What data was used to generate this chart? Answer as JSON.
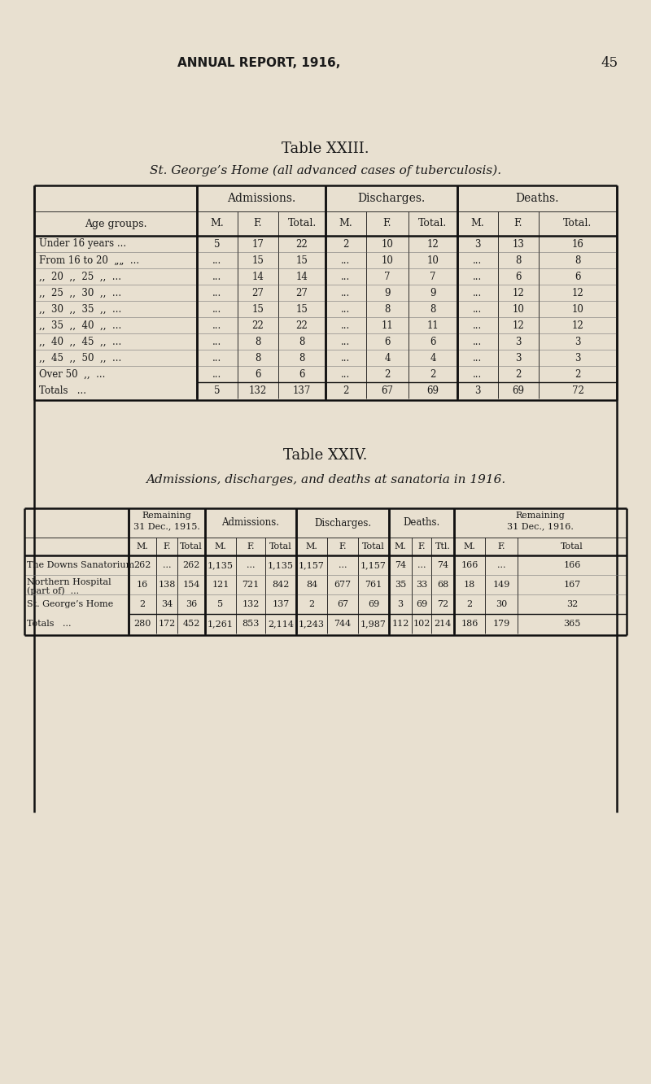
{
  "bg_color": "#e8e0d0",
  "text_color": "#1a1a1a",
  "page_header": "ANNUAL REPORT, 1916,",
  "page_number": "45",
  "table1_title": "Table XXIII.",
  "table1_subtitle": "St. George’s Home (all advanced cases of tuberculosis).",
  "table1_rows": [
    {
      "label": "Under 16 years ...",
      "adm_m": "5",
      "adm_f": "17",
      "adm_t": "22",
      "dis_m": "2",
      "dis_f": "10",
      "dis_t": "12",
      "dea_m": "3",
      "dea_f": "13",
      "dea_t": "16"
    },
    {
      "label": "From 16 to 20  „„  ...",
      "adm_m": "...",
      "adm_f": "15",
      "adm_t": "15",
      "dis_m": "...",
      "dis_f": "10",
      "dis_t": "10",
      "dea_m": "...",
      "dea_f": "8",
      "dea_t": "8"
    },
    {
      "„label": ",,  20  ,,  25  ,,  ...",
      "label": ",,  20  ,,  25  ,,  ...",
      "adm_m": "...",
      "adm_f": "14",
      "adm_t": "14",
      "dis_m": "...",
      "dis_f": "7",
      "dis_t": "7",
      "dea_m": "...",
      "dea_f": "6",
      "dea_t": "6"
    },
    {
      "label": ",,  25  ,,  30  ,,  ...",
      "adm_m": "...",
      "adm_f": "27",
      "adm_t": "27",
      "dis_m": "...",
      "dis_f": "9",
      "dis_t": "9",
      "dea_m": "...",
      "dea_f": "12",
      "dea_t": "12"
    },
    {
      "label": ",,  30  ,,  35  ,,  ...",
      "adm_m": "...",
      "adm_f": "15",
      "adm_t": "15",
      "dis_m": "...",
      "dis_f": "8",
      "dis_t": "8",
      "dea_m": "...",
      "dea_f": "10",
      "dea_t": "10"
    },
    {
      "label": ",,  35  ,,  40  ,,  ...",
      "adm_m": "...",
      "adm_f": "22",
      "adm_t": "22",
      "dis_m": "...",
      "dis_f": "11",
      "dis_t": "11",
      "dea_m": "...",
      "dea_f": "12",
      "dea_t": "12"
    },
    {
      "label": ",,  40  ,,  45  ,,  ...",
      "adm_m": "...",
      "adm_f": "8",
      "adm_t": "8",
      "dis_m": "...",
      "dis_f": "6",
      "dis_t": "6",
      "dea_m": "...",
      "dea_f": "3",
      "dea_t": "3"
    },
    {
      "label": ",,  45  ,,  50  ,,  ...",
      "adm_m": "...",
      "adm_f": "8",
      "adm_t": "8",
      "dis_m": "...",
      "dis_f": "4",
      "dis_t": "4",
      "dea_m": "...",
      "dea_f": "3",
      "dea_t": "3"
    },
    {
      "label": "Over 50  ,,  ...",
      "adm_m": "...",
      "adm_f": "6",
      "adm_t": "6",
      "dis_m": "...",
      "dis_f": "2",
      "dis_t": "2",
      "dea_m": "...",
      "dea_f": "2",
      "dea_t": "2"
    }
  ],
  "table1_totals": {
    "label": "Totals   ...",
    "adm_m": "5",
    "adm_f": "132",
    "adm_t": "137",
    "dis_m": "2",
    "dis_f": "67",
    "dis_t": "69",
    "dea_m": "3",
    "dea_f": "69",
    "dea_t": "72"
  },
  "table2_title": "Table XXIV.",
  "table2_subtitle": "Admissions, discharges, and deaths at sanatoria in 1916.",
  "table2_rows": [
    {
      "label": "The Downs Sanatorium",
      "label2": "",
      "r15_m": "262",
      "r15_f": "...",
      "r15_t": "262",
      "adm_m": "1,135",
      "adm_f": "...",
      "adm_t": "1,135",
      "dis_m": "1,157",
      "dis_f": "...",
      "dis_t": "1,157",
      "dea_m": "74",
      "dea_f": "...",
      "dea_t": "74",
      "r16_m": "166",
      "r16_f": "...",
      "r16_t": "166"
    },
    {
      "label": "Northern Hospital",
      "label2": "(part of)  ...",
      "r15_m": "16",
      "r15_f": "138",
      "r15_t": "154",
      "adm_m": "121",
      "adm_f": "721",
      "adm_t": "842",
      "dis_m": "84",
      "dis_f": "677",
      "dis_t": "761",
      "dea_m": "35",
      "dea_f": "33",
      "dea_t": "68",
      "r16_m": "18",
      "r16_f": "149",
      "r16_t": "167"
    },
    {
      "label": "St. George’s Home",
      "label2": "",
      "r15_m": "2",
      "r15_f": "34",
      "r15_t": "36",
      "adm_m": "5",
      "adm_f": "132",
      "adm_t": "137",
      "dis_m": "2",
      "dis_f": "67",
      "dis_t": "69",
      "dea_m": "3",
      "dea_f": "69",
      "dea_t": "72",
      "r16_m": "2",
      "r16_f": "30",
      "r16_t": "32"
    }
  ],
  "table2_totals": {
    "label": "Totals   ...",
    "r15_m": "280",
    "r15_f": "172",
    "r15_t": "452",
    "adm_m": "1,261",
    "adm_f": "853",
    "adm_t": "2,114",
    "dis_m": "1,243",
    "dis_f": "744",
    "dis_t": "1,987",
    "dea_m": "112",
    "dea_f": "102",
    "dea_t": "214",
    "r16_m": "186",
    "r16_f": "179",
    "r16_t": "365"
  }
}
